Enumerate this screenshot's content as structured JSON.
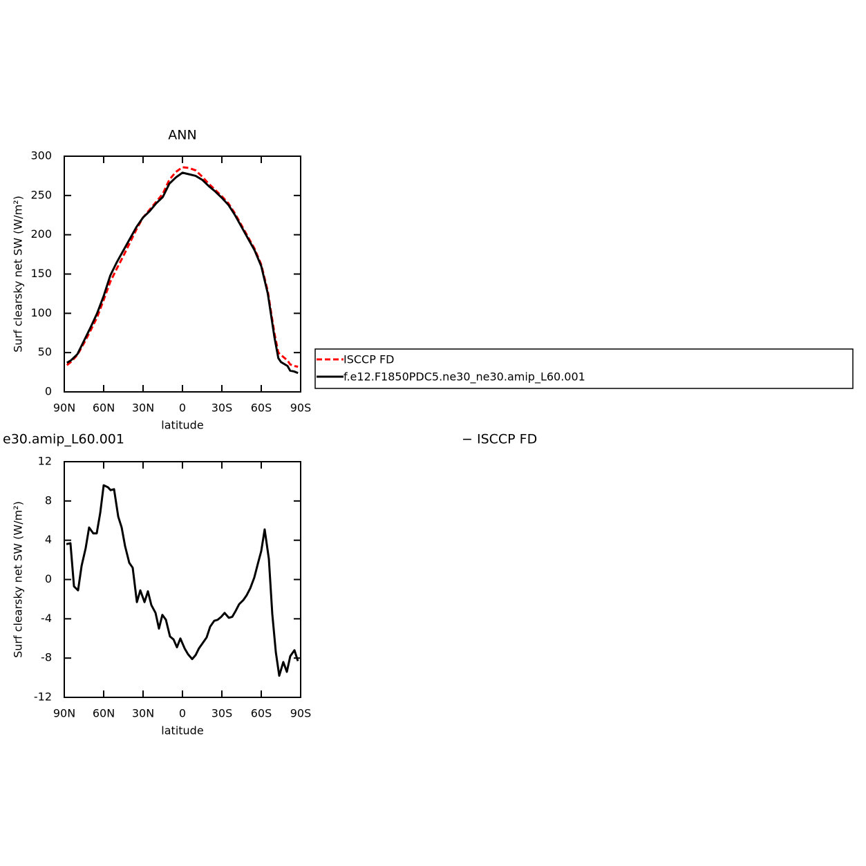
{
  "chart_data": [
    {
      "type": "line",
      "title": "ANN",
      "xlabel": "latitude",
      "ylabel": "Surf clearsky net SW (W/m²)",
      "xlim": [
        90,
        -90
      ],
      "ylim": [
        0,
        300
      ],
      "xticks": [
        {
          "value": 90,
          "label": "90N"
        },
        {
          "value": 60,
          "label": "60N"
        },
        {
          "value": 30,
          "label": "30N"
        },
        0,
        {
          "value": -30,
          "label": "30S"
        },
        {
          "value": -60,
          "label": "60S"
        },
        {
          "value": -90,
          "label": "90S"
        }
      ],
      "yticks": [
        0,
        50,
        100,
        150,
        200,
        250,
        300
      ],
      "legend": "right",
      "x": [
        88,
        85,
        80,
        75,
        70,
        65,
        60,
        55,
        50,
        45,
        40,
        35,
        30,
        25,
        20,
        15,
        10,
        5,
        0,
        -5,
        -10,
        -15,
        -20,
        -25,
        -30,
        -35,
        -40,
        -45,
        -50,
        -55,
        -60,
        -65,
        -70,
        -73,
        -75,
        -80,
        -82,
        -85,
        -88
      ],
      "series": [
        {
          "name": "ISCCP FD",
          "color": "#ff0000",
          "dash": true,
          "values": [
            34,
            38,
            47,
            62,
            78,
            95,
            117,
            140,
            157,
            173,
            190,
            207,
            222,
            232,
            242,
            252,
            270,
            280,
            286,
            285,
            282,
            274,
            265,
            257,
            249,
            240,
            227,
            212,
            197,
            182,
            162,
            128,
            75,
            50,
            47,
            40,
            35,
            33,
            32
          ]
        },
        {
          "name": "f.e12.F1850PDC5.ne30_ne30.amip_L60.001",
          "color": "#000000",
          "dash": false,
          "values": [
            37,
            40,
            48,
            65,
            82,
            100,
            122,
            148,
            165,
            180,
            195,
            210,
            222,
            230,
            240,
            248,
            265,
            273,
            279,
            277,
            275,
            270,
            262,
            255,
            247,
            238,
            225,
            210,
            195,
            180,
            160,
            125,
            70,
            43,
            38,
            33,
            27,
            26,
            24
          ]
        }
      ]
    },
    {
      "type": "line",
      "left_title": "e30.amip_L60.001",
      "right_title": "− ISCCP FD",
      "xlabel": "latitude",
      "ylabel": "Surf clearsky net SW (W/m²)",
      "xlim": [
        90,
        -90
      ],
      "ylim": [
        -12,
        12
      ],
      "xticks": [
        {
          "value": 90,
          "label": "90N"
        },
        {
          "value": 60,
          "label": "60N"
        },
        {
          "value": 30,
          "label": "30N"
        },
        0,
        {
          "value": -30,
          "label": "30S"
        },
        {
          "value": -60,
          "label": "60S"
        },
        {
          "value": -90,
          "label": "90S"
        }
      ],
      "yticks": [
        -12,
        -8,
        -4,
        0,
        4,
        8,
        12
      ],
      "x": [
        88.4,
        85.3,
        82.6,
        79.5,
        76.8,
        73.7,
        71.1,
        67.9,
        65.3,
        62.6,
        60.0,
        56.8,
        54.7,
        52.1,
        48.9,
        46.3,
        43.7,
        40.5,
        37.9,
        34.7,
        32.1,
        28.9,
        26.3,
        23.7,
        20.5,
        17.9,
        15.3,
        12.6,
        9.5,
        6.8,
        4.2,
        1.6,
        -1.6,
        -4.2,
        -7.4,
        -10.0,
        -12.6,
        -15.8,
        -18.4,
        -21.1,
        -24.2,
        -26.8,
        -29.5,
        -32.1,
        -35.3,
        -37.9,
        -40.5,
        -43.2,
        -46.3,
        -48.9,
        -51.6,
        -54.7,
        -57.4,
        -60.0,
        -62.6,
        -65.8,
        -68.4,
        -71.1,
        -73.7,
        -76.8,
        -79.5,
        -82.1,
        -85.3,
        -87.9
      ],
      "series": [
        {
          "color": "#000000",
          "values": [
            3.6,
            3.7,
            -0.7,
            -1.1,
            1.4,
            3.2,
            5.3,
            4.7,
            4.7,
            6.8,
            9.6,
            9.4,
            9.1,
            9.2,
            6.4,
            5.3,
            3.4,
            1.7,
            1.2,
            -2.3,
            -1.1,
            -2.3,
            -1.2,
            -2.6,
            -3.4,
            -5.0,
            -3.6,
            -4.1,
            -5.8,
            -6.1,
            -6.9,
            -6.0,
            -7.0,
            -7.6,
            -8.1,
            -7.7,
            -7.0,
            -6.4,
            -5.9,
            -4.8,
            -4.2,
            -4.1,
            -3.8,
            -3.4,
            -3.9,
            -3.8,
            -3.2,
            -2.5,
            -2.1,
            -1.6,
            -0.9,
            0.2,
            1.6,
            2.9,
            5.1,
            2.1,
            -3.5,
            -7.4,
            -9.8,
            -8.4,
            -9.4,
            -7.8,
            -7.2,
            -8.3
          ]
        }
      ]
    }
  ]
}
